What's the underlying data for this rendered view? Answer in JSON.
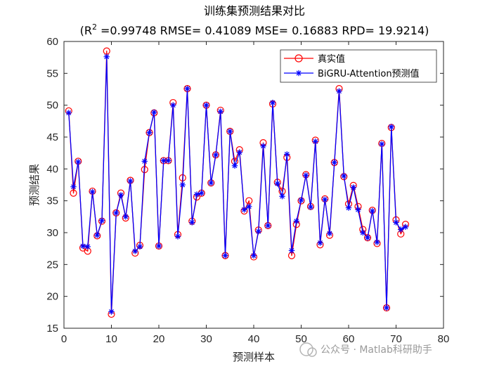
{
  "chart_data": {
    "type": "line",
    "title": "训练集预测结果对比",
    "subtitle_prefix": "(R",
    "subtitle_sup": "2",
    "subtitle_rest": " =0.99748 RMSE= 0.41089 MSE= 0.16883 RPD= 19.9214)",
    "xlabel": "预测样本",
    "ylabel": "预测结果",
    "xlim": [
      0,
      80
    ],
    "ylim": [
      15,
      60
    ],
    "xticks": [
      0,
      10,
      20,
      30,
      40,
      50,
      60,
      70,
      80
    ],
    "yticks": [
      15,
      20,
      25,
      30,
      35,
      40,
      45,
      50,
      55,
      60
    ],
    "grid": false,
    "legend_position": "top-right",
    "x": [
      1,
      2,
      3,
      4,
      5,
      6,
      7,
      8,
      9,
      10,
      11,
      12,
      13,
      14,
      15,
      16,
      17,
      18,
      19,
      20,
      21,
      22,
      23,
      24,
      25,
      26,
      27,
      28,
      29,
      30,
      31,
      32,
      33,
      34,
      35,
      36,
      37,
      38,
      39,
      40,
      41,
      42,
      43,
      44,
      45,
      46,
      47,
      48,
      49,
      50,
      51,
      52,
      53,
      54,
      55,
      56,
      57,
      58,
      59,
      60,
      61,
      62,
      63,
      64,
      65,
      66,
      67,
      68,
      69,
      70,
      71,
      72
    ],
    "series": [
      {
        "name": "真实值",
        "color": "#ff0000",
        "marker": "circle",
        "values": [
          49.1,
          36.2,
          41.2,
          27.6,
          27.1,
          36.5,
          29.5,
          31.8,
          58.5,
          17.2,
          33.1,
          36.2,
          32.3,
          38.2,
          26.8,
          28.0,
          39.9,
          45.7,
          48.8,
          27.9,
          41.3,
          41.3,
          50.4,
          29.7,
          38.6,
          52.6,
          31.8,
          35.6,
          36.2,
          50.0,
          37.8,
          42.2,
          49.2,
          26.4,
          45.9,
          41.2,
          43.0,
          33.4,
          35.0,
          26.2,
          30.4,
          44.1,
          31.1,
          50.2,
          37.9,
          36.5,
          41.8,
          26.4,
          31.3,
          35.0,
          39.1,
          34.1,
          44.5,
          28.1,
          35.3,
          29.6,
          41.0,
          52.6,
          38.8,
          34.5,
          37.4,
          34.1,
          30.5,
          29.2,
          33.5,
          28.3,
          44.0,
          18.2,
          46.5,
          32.0,
          29.8,
          31.3
        ]
      },
      {
        "name": "BiGRU-Attention预测值",
        "color": "#0000ff",
        "marker": "asterisk",
        "values": [
          48.8,
          37.2,
          41.1,
          27.9,
          27.8,
          36.4,
          29.6,
          31.9,
          57.6,
          17.6,
          33.1,
          35.9,
          32.5,
          38.1,
          27.1,
          27.8,
          41.2,
          45.7,
          48.9,
          27.9,
          41.3,
          41.3,
          50.0,
          29.4,
          37.5,
          52.6,
          31.6,
          36.0,
          36.2,
          50.0,
          37.8,
          42.2,
          49.0,
          26.4,
          45.9,
          40.5,
          42.6,
          33.6,
          34.1,
          26.4,
          30.2,
          43.6,
          31.1,
          50.4,
          37.7,
          35.7,
          42.3,
          27.2,
          31.8,
          35.1,
          39.0,
          34.0,
          44.3,
          28.4,
          35.2,
          29.9,
          41.0,
          52.2,
          38.9,
          33.9,
          37.1,
          33.6,
          30.0,
          29.2,
          33.4,
          28.5,
          43.9,
          18.2,
          46.6,
          31.6,
          30.5,
          30.9
        ]
      }
    ]
  },
  "watermark": "公众号 · Matlab科研助手"
}
